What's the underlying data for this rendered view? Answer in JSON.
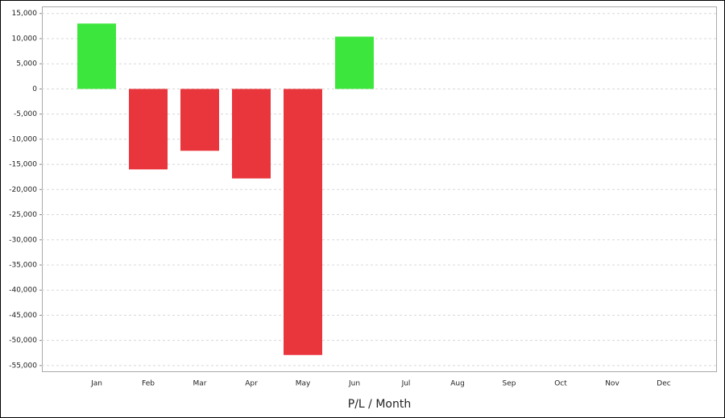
{
  "chart_data": {
    "type": "bar",
    "x_label": "P/L / Month",
    "categories": [
      "Jan",
      "Feb",
      "Mar",
      "Apr",
      "May",
      "Jun",
      "Jul",
      "Aug",
      "Sep",
      "Oct",
      "Nov",
      "Dec"
    ],
    "values": [
      13000,
      -16000,
      -12300,
      -17800,
      -52900,
      10400,
      null,
      null,
      null,
      null,
      null,
      null
    ],
    "positive_color": "#3de63d",
    "negative_color": "#e8363c",
    "ylim": [
      -56300,
      16400
    ],
    "yticks": [
      {
        "value": 15000,
        "label": "15,000"
      },
      {
        "value": 10000,
        "label": "10,000"
      },
      {
        "value": 5000,
        "label": "5,000"
      },
      0,
      {
        "value": -5000,
        "label": "-5,000"
      },
      {
        "value": -10000,
        "label": "-10,000"
      },
      {
        "value": -15000,
        "label": "-15,000"
      },
      {
        "value": -20000,
        "label": "-20,000"
      },
      {
        "value": -25000,
        "label": "-25,000"
      },
      {
        "value": -30000,
        "label": "-30,000"
      },
      {
        "value": -35000,
        "label": "-35,000"
      },
      {
        "value": -40000,
        "label": "-40,000"
      },
      {
        "value": -45000,
        "label": "-45,000"
      },
      {
        "value": -50000,
        "label": "-50,000"
      },
      {
        "value": -55000,
        "label": "-55,000"
      }
    ],
    "grid": true
  }
}
